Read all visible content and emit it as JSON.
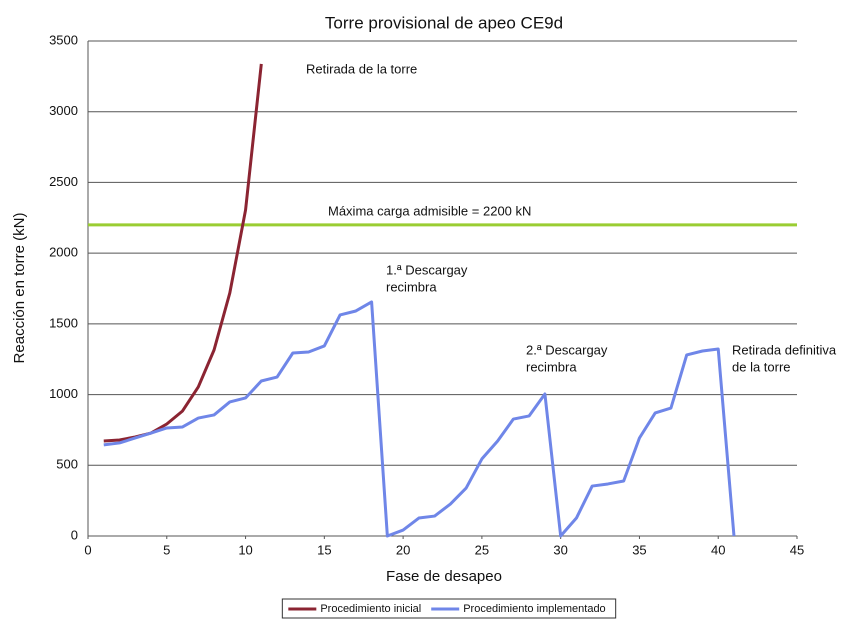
{
  "chart_data": {
    "type": "line",
    "title": "Torre provisional de apeo CE9d",
    "x_label": "Fase de desapeo",
    "y_label": "Reacción en torre (kN)",
    "xlim": [
      0,
      45
    ],
    "xticks": [
      0,
      5,
      10,
      15,
      20,
      25,
      30,
      35,
      40,
      45
    ],
    "ylim": [
      0,
      3500
    ],
    "yticks": [
      0,
      500,
      1000,
      1500,
      2000,
      2500,
      3000,
      3500
    ],
    "grid": true,
    "legend": "bottom",
    "series": [
      {
        "name": "Procedimiento inicial",
        "color": "#8b2432",
        "x": [
          1,
          2,
          3,
          4,
          5,
          6,
          7,
          8,
          9,
          10,
          11
        ],
        "values": [
          672,
          679,
          700,
          728,
          792,
          884,
          1054,
          1315,
          1718,
          2305,
          3338
        ]
      },
      {
        "name": "Procedimiento implementado",
        "color": "#6f86e8",
        "x": [
          1,
          2,
          3,
          4,
          5,
          6,
          7,
          8,
          9,
          10,
          11,
          12,
          13,
          14,
          15,
          16,
          17,
          18,
          19,
          20,
          21,
          22,
          23,
          24,
          25,
          26,
          27,
          28,
          29,
          30,
          31,
          32,
          33,
          34,
          35,
          36,
          37,
          38,
          39,
          40,
          41
        ],
        "values": [
          644,
          658,
          693,
          728,
          764,
          771,
          834,
          856,
          948,
          976,
          1096,
          1124,
          1294,
          1301,
          1344,
          1563,
          1591,
          1655,
          0,
          42,
          127,
          141,
          226,
          339,
          545,
          672,
          827,
          849,
          1004,
          0,
          127,
          353,
          368,
          389,
          693,
          870,
          905,
          1280,
          1308,
          1322,
          0
        ]
      }
    ],
    "reference_line": {
      "value": 2200,
      "color": "#9acd32"
    },
    "annotations": [
      {
        "lines": [
          "Retirada de la torre"
        ]
      },
      {
        "lines": [
          "Máxima carga admisible = 2200 kN"
        ]
      },
      {
        "lines": [
          "1.ª Descargay",
          "recimbra"
        ]
      },
      {
        "lines": [
          "2.ª Descargay",
          "recimbra"
        ]
      },
      {
        "lines": [
          "Retirada definitiva",
          "de la torre"
        ]
      }
    ]
  }
}
